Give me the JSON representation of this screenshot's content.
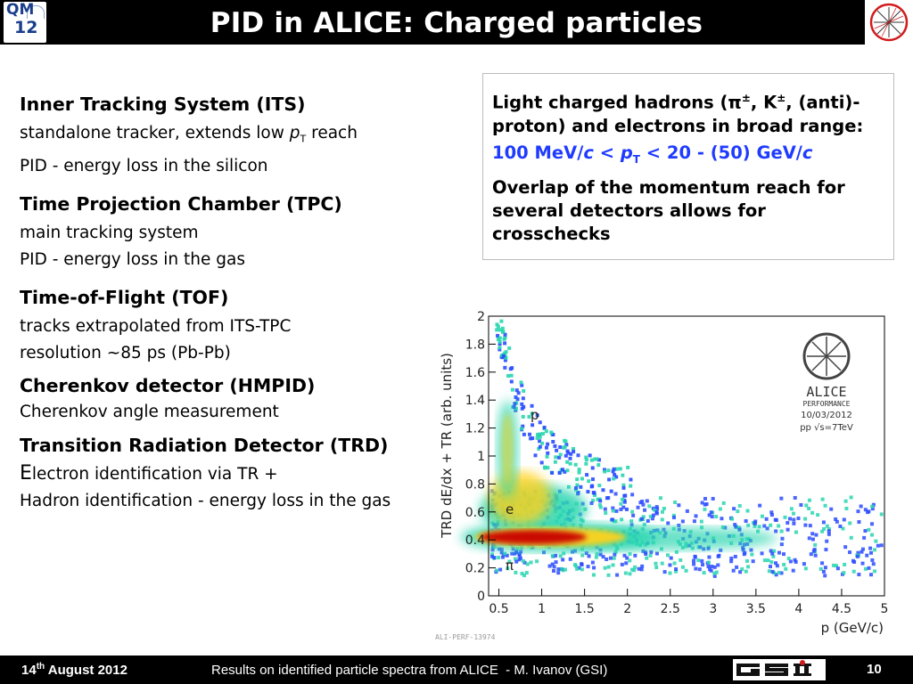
{
  "header": {
    "title": "PID in ALICE: Charged particles",
    "left_logo": {
      "line1": "QM",
      "line2": "12"
    }
  },
  "left_sections": [
    {
      "heading": "Inner Tracking System (ITS)",
      "line1_pre": "standalone tracker, extends low ",
      "line1_var": "p",
      "line1_sub": "T",
      "line1_post": " reach",
      "line2": "PID - energy loss in the silicon"
    },
    {
      "heading": "Time Projection Chamber (TPC)",
      "line1": "main tracking system",
      "line2": "PID - energy loss in the gas"
    },
    {
      "heading": "Time-of-Flight (TOF)",
      "line1": "tracks extrapolated from ITS-TPC",
      "line2": "resolution ~85 ps (Pb-Pb)"
    },
    {
      "heading": "Cherenkov detector (HMPID)",
      "line1": "Cherenkov angle measurement"
    },
    {
      "heading": "Transition Radiation Detector (TRD)",
      "line1_big": "E",
      "line1_rest": "lectron identification via TR +",
      "line2": "Hadron identification - energy loss in the gas"
    }
  ],
  "info_box": {
    "p1_a": "Light charged hadrons (π",
    "p1_sup1": "±",
    "p1_b": ", K",
    "p1_sup2": "±",
    "p1_c": ", (anti)-proton) and electrons in broad range:",
    "range_a": "100 MeV/",
    "range_c1": "c",
    "range_b": " < ",
    "range_p": "p",
    "range_t": "T",
    "range_d": " < 20 - (50) GeV/",
    "range_c2": "c",
    "p3": "Overlap of the momentum reach for several detectors allows for crosschecks"
  },
  "plot": {
    "y_axis_label": "TRD dE/dx + TR (arb. units)",
    "x_axis_label": "p (GeV/c)",
    "x_ticks": [
      "0.5",
      "1",
      "1.5",
      "2",
      "2.5",
      "3",
      "3.5",
      "4",
      "4.5",
      "5"
    ],
    "y_ticks": [
      "0",
      "0.2",
      "0.4",
      "0.6",
      "0.8",
      "1",
      "1.2",
      "1.4",
      "1.6",
      "1.8",
      "2"
    ],
    "annotations": {
      "proton": "p",
      "electron": "e",
      "pion": "π"
    },
    "alice_badge": {
      "name": "ALICE",
      "line1": "PERFORMANCE",
      "line2": "10/03/2012",
      "line3": "pp √s=7TeV"
    },
    "figure_id": "ALI-PERF-13974",
    "colors": {
      "low": "#2a4bff",
      "mid": "#29d6b0",
      "high": "#ffd21f",
      "peak": "#c80000"
    }
  },
  "footer": {
    "date_day": "14",
    "date_sup": "th",
    "date_rest": " August 2012",
    "text": "Results on identified particle spectra from ALICE  - M. Ivanov (GSI)",
    "logo": "GSI",
    "page": "10"
  }
}
